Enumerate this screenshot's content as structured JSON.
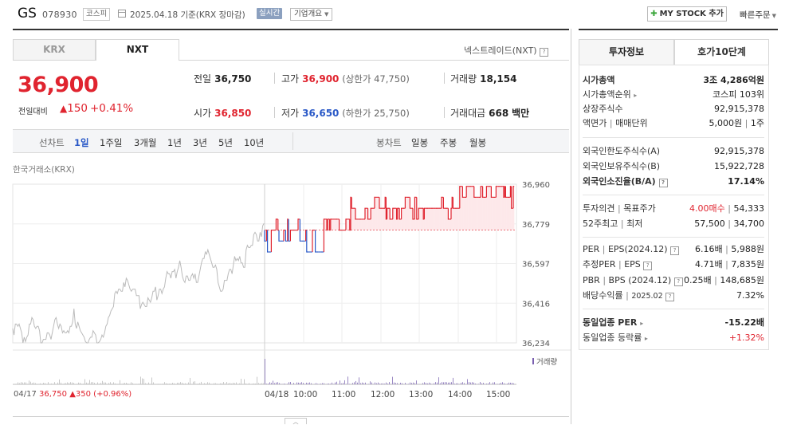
{
  "header": {
    "name": "GS",
    "code": "078930",
    "market": "코스피",
    "date_text": "2025.04.18  기준(KRX 장마감)",
    "live": "실시간",
    "company_info": "기업개요",
    "mystock": "MY STOCK 추가",
    "quick_order": "빠른주문"
  },
  "tabs": {
    "krx": "KRX",
    "nxt": "NXT",
    "nxt_label": "넥스트레이드(NXT)"
  },
  "price": {
    "current": "36,900",
    "change_label": "전일대비",
    "change": "150",
    "change_pct": "+0.41%"
  },
  "quote": {
    "prev_label": "전일",
    "prev": "36,750",
    "high_label": "고가",
    "high": "36,900",
    "upper_limit": "(상한가 47,750)",
    "volume_label": "거래량",
    "volume": "18,154",
    "open_label": "시가",
    "open": "36,850",
    "low_label": "저가",
    "low": "36,650",
    "lower_limit": "(하한가 25,750)",
    "amount_label": "거래대금",
    "amount": "668",
    "amount_unit": "백만"
  },
  "periods": {
    "line_label": "선차트",
    "items": [
      "1일",
      "1주일",
      "3개월",
      "1년",
      "3년",
      "5년",
      "10년"
    ],
    "candle_label": "봉차트",
    "candle_items": [
      "일봉",
      "주봉",
      "월봉"
    ]
  },
  "chart_label": "한국거래소(KRX)",
  "chart_data": {
    "type": "line",
    "y_ticks": [
      "36,960",
      "36,779",
      "36,597",
      "36,416",
      "36,234"
    ],
    "ylim": [
      36234,
      36960
    ],
    "x_ticks": [
      "04/18",
      "10:00",
      "11:00",
      "12:00",
      "13:00",
      "14:00",
      "15:00"
    ],
    "volume_label": "거래량",
    "prev_day": {
      "date": "04/17",
      "close": "36,750",
      "change": "350",
      "change_pct": "(+0.96%)"
    },
    "reference_price": 36750,
    "colors": {
      "up": "#e0242f",
      "down": "#2a59c7",
      "prev": "#bbbbbb",
      "fill": "#fde8ea"
    }
  },
  "info": {
    "tab_active": "투자정보",
    "tab_other": "호가10단계",
    "market_cap_label": "시가총액",
    "market_cap": "3조 4,286억원",
    "rank_label": "시가총액순위",
    "rank": "코스피 103위",
    "shares_label": "상장주식수",
    "shares": "92,915,378",
    "par_label": "액면가",
    "trade_unit_label": "매매단위",
    "par": "5,000원",
    "trade_unit": "1주",
    "foreign_limit_label": "외국인한도주식수(A)",
    "foreign_limit": "92,915,378",
    "foreign_hold_label": "외국인보유주식수(B)",
    "foreign_hold": "15,922,728",
    "foreign_ratio_label": "외국인소진율(B/A)",
    "foreign_ratio": "17.14%",
    "opinion_label": "투자의견",
    "target_label": "목표주가",
    "opinion": "4.00매수",
    "target": "54,333",
    "high52_label": "52주최고",
    "low52_label": "최저",
    "high52": "57,500",
    "low52": "34,700",
    "per_label": "PER",
    "eps_label": "EPS(2024.12)",
    "per": "6.16배",
    "eps": "5,988원",
    "est_per_label": "추정PER",
    "est_eps_label": "EPS",
    "est_per": "4.71배",
    "est_eps": "7,835원",
    "pbr_label": "PBR",
    "bps_label": "BPS (2024.12)",
    "pbr": "0.25배",
    "bps": "148,685원",
    "div_label": "배당수익률",
    "div_date": "2025.02",
    "div": "7.32%",
    "ind_per_label": "동일업종 PER",
    "ind_per": "-15.22배",
    "ind_rate_label": "동일업종 등락률",
    "ind_rate": "+1.32%"
  }
}
